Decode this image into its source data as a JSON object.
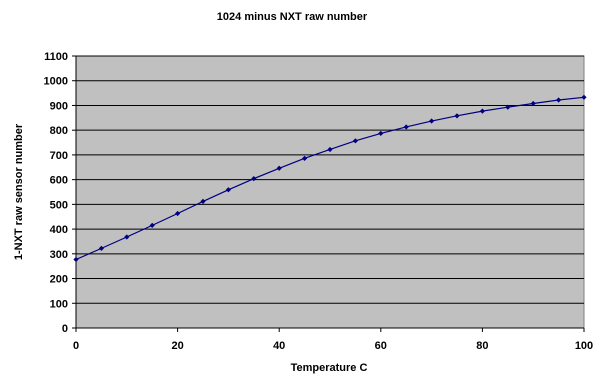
{
  "chart_data": {
    "type": "line",
    "title": "1024 minus NXT raw number",
    "xlabel": "Temperature C",
    "ylabel": "1-NXT raw sensor number",
    "xlim": [
      0,
      100
    ],
    "ylim": [
      0,
      1100
    ],
    "x_ticks": [
      0,
      20,
      40,
      60,
      80,
      100
    ],
    "y_ticks": [
      0,
      100,
      200,
      300,
      400,
      500,
      600,
      700,
      800,
      900,
      1000,
      1100
    ],
    "grid": true,
    "plot_background": "#c0c0c0",
    "series": [
      {
        "color": "#000080",
        "marker": "diamond",
        "x": [
          0,
          5,
          10,
          15,
          20,
          25,
          30,
          35,
          40,
          45,
          50,
          55,
          60,
          65,
          70,
          75,
          80,
          85,
          90,
          95,
          100
        ],
        "y": [
          277,
          322,
          368,
          415,
          463,
          512,
          559,
          604,
          646,
          686,
          722,
          757,
          787,
          813,
          837,
          858,
          877,
          893,
          908,
          922,
          933
        ]
      }
    ]
  }
}
